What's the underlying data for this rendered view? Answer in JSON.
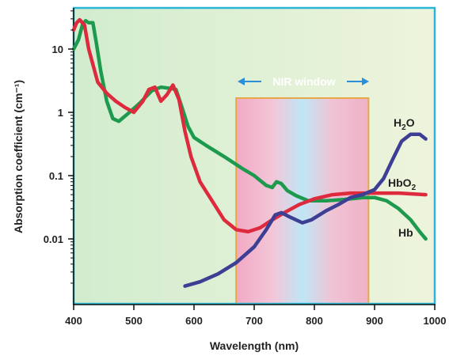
{
  "chart_data": {
    "type": "line",
    "xlabel": "Wavelength (nm)",
    "ylabel": "Absorption coefficient (cm⁻¹)",
    "xlim": [
      400,
      1000
    ],
    "ylim": [
      0.0009,
      45
    ],
    "y_scale": "log",
    "grid": false,
    "x_ticks": [
      400,
      500,
      600,
      700,
      800,
      900,
      1000
    ],
    "y_ticks": [
      {
        "value": 10,
        "label": "10"
      },
      {
        "value": 1,
        "label": "1"
      },
      {
        "value": 0.1,
        "label": "0.1"
      },
      {
        "value": 0.01,
        "label": "0.01"
      }
    ],
    "annotation": {
      "label": "NIR window",
      "range": [
        670,
        890
      ]
    },
    "series": [
      {
        "name": "Hb",
        "color": "#1e9a4e",
        "points": [
          [
            400,
            10
          ],
          [
            408,
            14
          ],
          [
            415,
            25
          ],
          [
            420,
            28
          ],
          [
            425,
            26
          ],
          [
            432,
            26
          ],
          [
            438,
            12
          ],
          [
            445,
            4.5
          ],
          [
            455,
            1.5
          ],
          [
            465,
            0.8
          ],
          [
            475,
            0.72
          ],
          [
            490,
            0.95
          ],
          [
            510,
            1.4
          ],
          [
            530,
            2.2
          ],
          [
            545,
            2.5
          ],
          [
            560,
            2.4
          ],
          [
            570,
            2.3
          ],
          [
            580,
            1.2
          ],
          [
            590,
            0.6
          ],
          [
            600,
            0.4
          ],
          [
            620,
            0.3
          ],
          [
            650,
            0.2
          ],
          [
            680,
            0.13
          ],
          [
            700,
            0.1
          ],
          [
            720,
            0.07
          ],
          [
            730,
            0.065
          ],
          [
            737,
            0.08
          ],
          [
            745,
            0.075
          ],
          [
            755,
            0.058
          ],
          [
            770,
            0.048
          ],
          [
            790,
            0.04
          ],
          [
            820,
            0.04
          ],
          [
            850,
            0.042
          ],
          [
            880,
            0.045
          ],
          [
            900,
            0.045
          ],
          [
            920,
            0.04
          ],
          [
            940,
            0.03
          ],
          [
            960,
            0.02
          ],
          [
            975,
            0.013
          ],
          [
            985,
            0.01
          ]
        ]
      },
      {
        "name": "HbO₂",
        "color": "#dd2a3d",
        "points": [
          [
            400,
            20
          ],
          [
            405,
            26
          ],
          [
            410,
            29
          ],
          [
            418,
            24
          ],
          [
            425,
            10
          ],
          [
            440,
            3
          ],
          [
            455,
            2
          ],
          [
            470,
            1.5
          ],
          [
            485,
            1.2
          ],
          [
            500,
            1.0
          ],
          [
            515,
            1.5
          ],
          [
            525,
            2.3
          ],
          [
            535,
            2.5
          ],
          [
            545,
            1.5
          ],
          [
            555,
            1.9
          ],
          [
            565,
            2.7
          ],
          [
            575,
            1.6
          ],
          [
            585,
            0.5
          ],
          [
            595,
            0.2
          ],
          [
            610,
            0.08
          ],
          [
            630,
            0.04
          ],
          [
            650,
            0.02
          ],
          [
            670,
            0.014
          ],
          [
            690,
            0.013
          ],
          [
            710,
            0.015
          ],
          [
            730,
            0.02
          ],
          [
            750,
            0.026
          ],
          [
            775,
            0.035
          ],
          [
            800,
            0.043
          ],
          [
            830,
            0.05
          ],
          [
            860,
            0.053
          ],
          [
            900,
            0.053
          ],
          [
            940,
            0.053
          ],
          [
            985,
            0.05
          ]
        ]
      },
      {
        "name": "H₂O",
        "color": "#3c3f93",
        "points": [
          [
            585,
            0.0018
          ],
          [
            610,
            0.0021
          ],
          [
            640,
            0.0028
          ],
          [
            670,
            0.0042
          ],
          [
            700,
            0.0075
          ],
          [
            720,
            0.014
          ],
          [
            735,
            0.024
          ],
          [
            745,
            0.026
          ],
          [
            760,
            0.022
          ],
          [
            780,
            0.018
          ],
          [
            795,
            0.02
          ],
          [
            820,
            0.028
          ],
          [
            840,
            0.035
          ],
          [
            860,
            0.045
          ],
          [
            880,
            0.05
          ],
          [
            900,
            0.06
          ],
          [
            915,
            0.09
          ],
          [
            930,
            0.18
          ],
          [
            945,
            0.35
          ],
          [
            960,
            0.45
          ],
          [
            975,
            0.45
          ],
          [
            985,
            0.38
          ]
        ]
      }
    ]
  }
}
